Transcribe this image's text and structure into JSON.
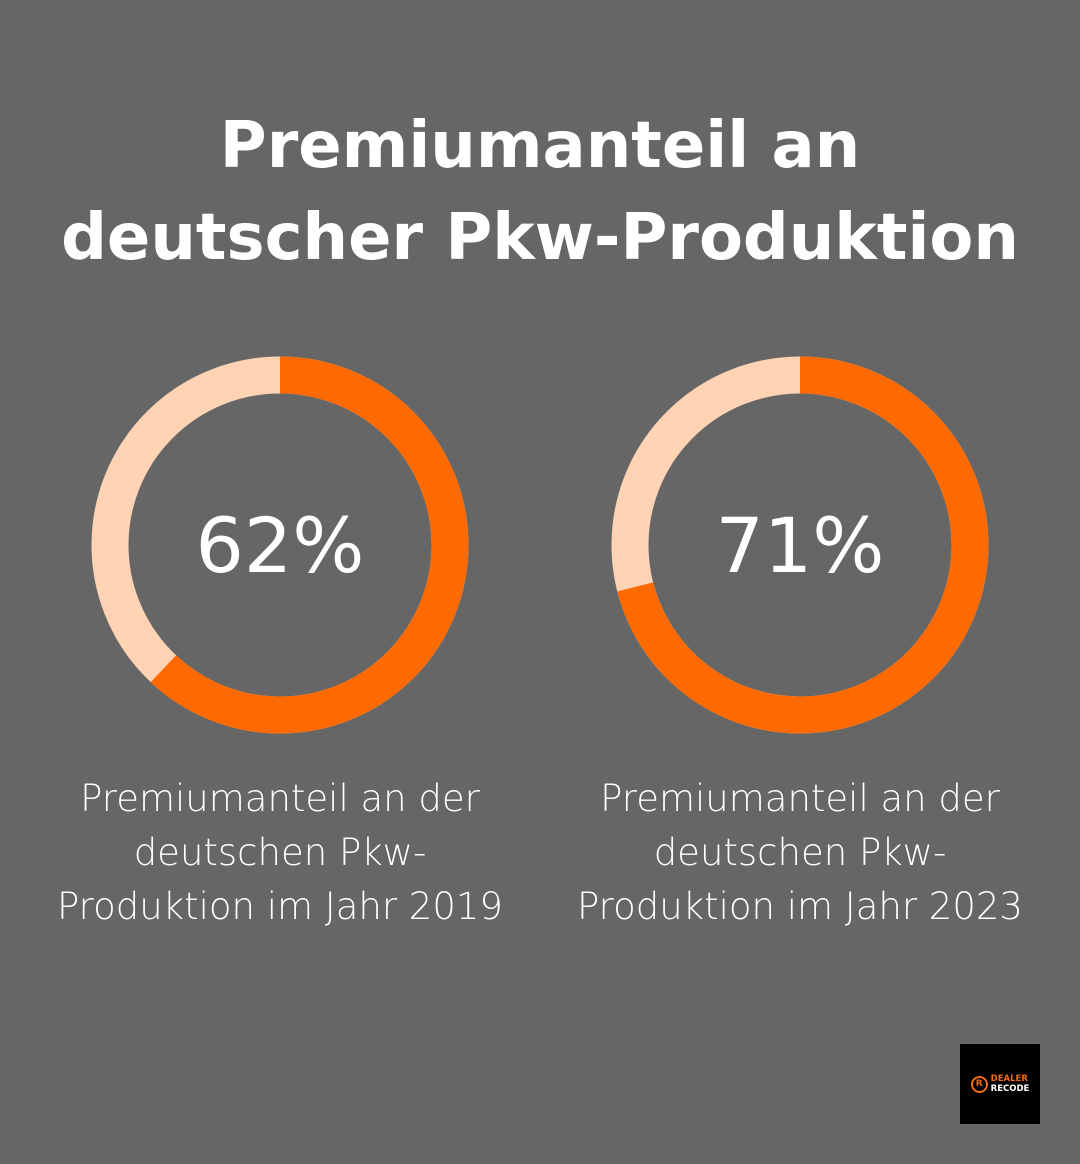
{
  "title_line1": "Premiumanteil an",
  "title_line2": "deutscher Pkw-Produktion",
  "chart_data": [
    {
      "type": "pie",
      "variant": "donut",
      "value": 62,
      "label": "62%",
      "caption": "Premiumanteil an der deutschen Pkw-Produktion im Jahr 2019",
      "colors": {
        "value": "#ff6a00",
        "remainder": "#ffd3b3"
      }
    },
    {
      "type": "pie",
      "variant": "donut",
      "value": 71,
      "label": "71%",
      "caption": "Premiumanteil an der deutschen Pkw-Produktion im Jahr 2023",
      "colors": {
        "value": "#ff6a00",
        "remainder": "#ffd3b3"
      }
    }
  ],
  "logo": {
    "line1": "DEALER",
    "line2": "RECODE",
    "mark": "R",
    "colors": {
      "accent": "#f26a10",
      "background": "#000000"
    }
  }
}
